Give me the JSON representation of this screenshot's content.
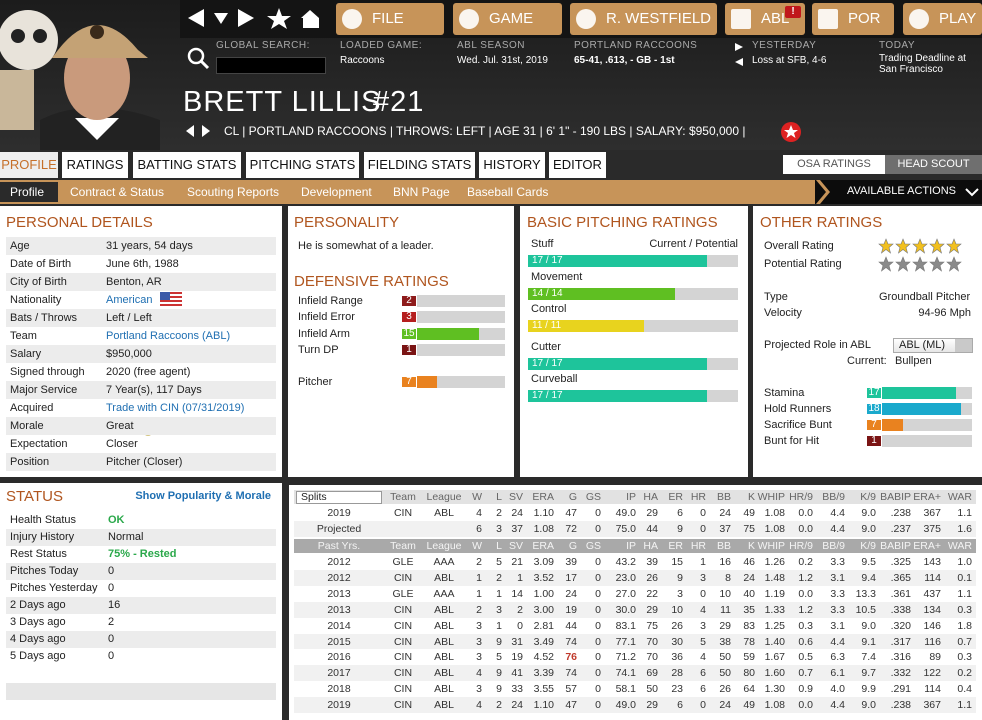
{
  "nav": {
    "buttons": [
      "FILE",
      "GAME",
      "R. WESTFIELD",
      "ABL",
      "POR",
      "PLAY"
    ],
    "alert": "!"
  },
  "info": {
    "search_label": "GLOBAL SEARCH:",
    "loaded_label": "LOADED GAME:",
    "loaded_value": "Raccoons",
    "season_label": "ABL SEASON",
    "season_value": "Wed. Jul. 31st, 2019",
    "team_label": "PORTLAND RACCOONS",
    "team_value": "65-41, .613, - GB - 1st",
    "yesterday_label": "YESTERDAY",
    "yesterday_value": "Loss at SFB, 4-6",
    "today_label": "TODAY",
    "today_value": "Trading Deadline at San Francisco"
  },
  "player": {
    "name": "BRETT LILLIS",
    "number": "#21",
    "line": "CL | PORTLAND RACCOONS | THROWS: LEFT | AGE 31 | 6' 1\" - 190 LBS | SALARY: $950,000 |"
  },
  "tabs": [
    "PROFILE",
    "RATINGS",
    "BATTING STATS",
    "PITCHING STATS",
    "FIELDING STATS",
    "HISTORY",
    "EDITOR"
  ],
  "scout_tabs": [
    "OSA RATINGS",
    "HEAD SCOUT"
  ],
  "subtabs": [
    "Profile",
    "Contract & Status",
    "Scouting Reports",
    "Development",
    "BNN Page",
    "Baseball Cards"
  ],
  "actions": "AVAILABLE ACTIONS",
  "personal": {
    "title": "PERSONAL DETAILS",
    "link_color": "#1f6fb2",
    "rows": [
      {
        "label": "Age",
        "value": "31 years, 54 days"
      },
      {
        "label": "Date of Birth",
        "value": "June 6th, 1988"
      },
      {
        "label": "City of Birth",
        "value": "Benton, AR"
      },
      {
        "label": "Nationality",
        "value": "American",
        "link": true
      },
      {
        "label": "Bats / Throws",
        "value": "Left / Left"
      },
      {
        "label": "Team",
        "value": "Portland Raccoons (ABL)",
        "link": true
      },
      {
        "label": "Salary",
        "value": "$950,000"
      },
      {
        "label": "Signed through",
        "value": "2020 (free agent)"
      },
      {
        "label": "Major Service",
        "value": "7 Year(s), 117 Days"
      },
      {
        "label": "Acquired",
        "value": "Trade with CIN (07/31/2019)",
        "link": true
      },
      {
        "label": "Morale",
        "value": "Great"
      },
      {
        "label": "Expectation",
        "value": "Closer"
      },
      {
        "label": "Position",
        "value": "Pitcher (Closer)"
      }
    ]
  },
  "personality": {
    "title": "PERSONALITY",
    "text": "He is somewhat of a leader."
  },
  "defensive": {
    "title": "DEFENSIVE RATINGS",
    "scale": [
      0,
      20
    ],
    "ratings": [
      {
        "name": "Infield Range",
        "value": 2,
        "color": "#8e1b1b"
      },
      {
        "name": "Infield Error",
        "value": 3,
        "color": "#b51f1f"
      },
      {
        "name": "Infield Arm",
        "value": 15,
        "color": "#5fbf22"
      },
      {
        "name": "Turn DP",
        "value": 1,
        "color": "#7a1414"
      },
      {
        "name": "Pitcher",
        "value": 7,
        "color": "#e9821f"
      }
    ]
  },
  "pitching": {
    "title": "BASIC PITCHING RATINGS",
    "header": "Current / Potential",
    "scale": [
      0,
      20
    ],
    "ratings": [
      {
        "name": "Stuff",
        "value": 17,
        "label": "17 / 17",
        "color": "#1ec49b"
      },
      {
        "name": "Movement",
        "value": 14,
        "label": "14 / 14",
        "color": "#5fbf22"
      },
      {
        "name": "Control",
        "value": 11,
        "label": "11 / 11",
        "color": "#e8d31e"
      },
      {
        "name": "Cutter",
        "value": 17,
        "label": "17 / 17",
        "color": "#1ec49b"
      },
      {
        "name": "Curveball",
        "value": 17,
        "label": "17 / 17",
        "color": "#1ec49b"
      }
    ]
  },
  "other": {
    "title": "OTHER RATINGS",
    "overall_label": "Overall Rating",
    "overall_stars": 5,
    "overall_color": "#f2c01e",
    "potential_label": "Potential Rating",
    "potential_stars": 5,
    "potential_color": "#8a8a8a",
    "type_label": "Type",
    "type_value": "Groundball Pitcher",
    "velocity_label": "Velocity",
    "velocity_value": "94-96 Mph",
    "role_label": "Projected Role in ABL",
    "role_select": "ABL (ML)",
    "current_label": "Current:",
    "current_value": "Bullpen",
    "scale": [
      0,
      20
    ],
    "ratings": [
      {
        "name": "Stamina",
        "value": 17,
        "color": "#1ec49b"
      },
      {
        "name": "Hold Runners",
        "value": 18,
        "color": "#1aa9cc"
      },
      {
        "name": "Sacrifice Bunt",
        "value": 7,
        "color": "#e9821f"
      },
      {
        "name": "Bunt for Hit",
        "value": 1,
        "color": "#7a1414"
      }
    ]
  },
  "status": {
    "title": "STATUS",
    "link": "Show Popularity & Morale",
    "good_color": "#2aa84a",
    "rows": [
      {
        "label": "Health Status",
        "value": "OK",
        "good": true
      },
      {
        "label": "Injury History",
        "value": "Normal"
      },
      {
        "label": "Rest Status",
        "value": "75% - Rested",
        "good": true
      },
      {
        "label": "Pitches Today",
        "value": "0"
      },
      {
        "label": "Pitches Yesterday",
        "value": "0"
      },
      {
        "label": "2 Days ago",
        "value": "16"
      },
      {
        "label": "3 Days ago",
        "value": "2"
      },
      {
        "label": "4 Days ago",
        "value": "0"
      },
      {
        "label": "5 Days ago",
        "value": "0"
      }
    ]
  },
  "stats": {
    "splits": "Splits",
    "columns": [
      "Team",
      "League",
      "W",
      "L",
      "SV",
      "ERA",
      "G",
      "GS",
      "IP",
      "HA",
      "ER",
      "HR",
      "BB",
      "K",
      "WHIP",
      "HR/9",
      "BB/9",
      "K/9",
      "BABIP",
      "ERA+",
      "WAR"
    ],
    "current_rows": [
      [
        "2019",
        "CIN",
        "ABL",
        "4",
        "2",
        "24",
        "1.10",
        "47",
        "0",
        "49.0",
        "29",
        "6",
        "0",
        "24",
        "49",
        "1.08",
        "0.0",
        "4.4",
        "9.0",
        ".238",
        "367",
        "1.1"
      ],
      [
        "Projected",
        null,
        null,
        "6",
        "3",
        "37",
        "1.08",
        "72",
        "0",
        "75.0",
        "44",
        "9",
        "0",
        "37",
        "75",
        "1.08",
        "0.0",
        "4.4",
        "9.0",
        ".237",
        "375",
        "1.6"
      ]
    ],
    "past_label": "Past Yrs.",
    "past_rows": [
      [
        "2012",
        "GLE",
        "AAA",
        "2",
        "5",
        "21",
        "3.09",
        "39",
        "0",
        "43.2",
        "39",
        "15",
        "1",
        "16",
        "46",
        "1.26",
        "0.2",
        "3.3",
        "9.5",
        ".325",
        "143",
        "1.0"
      ],
      [
        "2012",
        "CIN",
        "ABL",
        "1",
        "2",
        "1",
        "3.52",
        "17",
        "0",
        "23.0",
        "26",
        "9",
        "3",
        "8",
        "24",
        "1.48",
        "1.2",
        "3.1",
        "9.4",
        ".365",
        "114",
        "0.1"
      ],
      [
        "2013",
        "GLE",
        "AAA",
        "1",
        "1",
        "14",
        "1.00",
        "24",
        "0",
        "27.0",
        "22",
        "3",
        "0",
        "10",
        "40",
        "1.19",
        "0.0",
        "3.3",
        "13.3",
        ".361",
        "437",
        "1.1"
      ],
      [
        "2013",
        "CIN",
        "ABL",
        "2",
        "3",
        "2",
        "3.00",
        "19",
        "0",
        "30.0",
        "29",
        "10",
        "4",
        "11",
        "35",
        "1.33",
        "1.2",
        "3.3",
        "10.5",
        ".338",
        "134",
        "0.3"
      ],
      [
        "2014",
        "CIN",
        "ABL",
        "3",
        "1",
        "0",
        "2.81",
        "44",
        "0",
        "83.1",
        "75",
        "26",
        "3",
        "29",
        "83",
        "1.25",
        "0.3",
        "3.1",
        "9.0",
        ".320",
        "146",
        "1.8"
      ],
      [
        "2015",
        "CIN",
        "ABL",
        "3",
        "9",
        "31",
        "3.49",
        "74",
        "0",
        "77.1",
        "70",
        "30",
        "5",
        "38",
        "78",
        "1.40",
        "0.6",
        "4.4",
        "9.1",
        ".317",
        "116",
        "0.7"
      ],
      [
        "2016",
        "CIN",
        "ABL",
        "3",
        "5",
        "19",
        "4.52",
        "76",
        "0",
        "71.2",
        "70",
        "36",
        "4",
        "50",
        "59",
        "1.67",
        "0.5",
        "6.3",
        "7.4",
        ".316",
        "89",
        "0.3"
      ],
      [
        "2017",
        "CIN",
        "ABL",
        "4",
        "9",
        "41",
        "3.39",
        "74",
        "0",
        "74.1",
        "69",
        "28",
        "6",
        "50",
        "80",
        "1.60",
        "0.7",
        "6.1",
        "9.7",
        ".332",
        "122",
        "0.2"
      ],
      [
        "2018",
        "CIN",
        "ABL",
        "3",
        "9",
        "33",
        "3.55",
        "57",
        "0",
        "58.1",
        "50",
        "23",
        "6",
        "26",
        "64",
        "1.30",
        "0.9",
        "4.0",
        "9.9",
        ".291",
        "114",
        "0.4"
      ],
      [
        "2019",
        "CIN",
        "ABL",
        "4",
        "2",
        "24",
        "1.10",
        "47",
        "0",
        "49.0",
        "29",
        "6",
        "0",
        "24",
        "49",
        "1.08",
        "0.0",
        "4.4",
        "9.0",
        ".238",
        "367",
        "1.1"
      ]
    ],
    "highlight": {
      "row": 6,
      "col": 7,
      "color": "#c0392b"
    }
  }
}
